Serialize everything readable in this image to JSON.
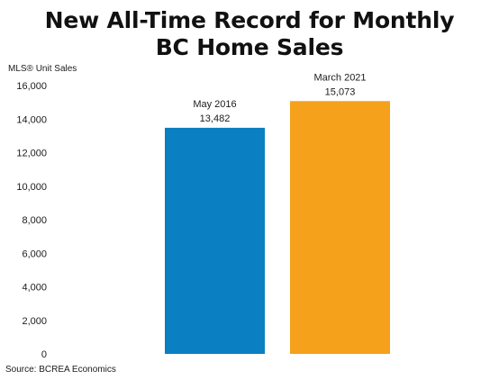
{
  "chart_data": {
    "type": "bar",
    "title": "New All-Time Record for Monthly BC Home Sales",
    "title_lines": [
      "New All-Time Record for Monthly",
      "BC Home Sales"
    ],
    "ylabel": "MLS® Unit Sales",
    "xlabel": "",
    "categories": [
      "May 2016",
      "March 2021"
    ],
    "values": [
      13482,
      15073
    ],
    "value_labels": [
      "13,482",
      "15,073"
    ],
    "bar_colors": [
      "#0a7fc1",
      "#f5a11c"
    ],
    "ylim": [
      0,
      16000
    ],
    "yticks": [
      0,
      2000,
      4000,
      6000,
      8000,
      10000,
      12000,
      14000,
      16000
    ],
    "ytick_labels": [
      "0",
      "2,000",
      "4,000",
      "6,000",
      "8,000",
      "10,000",
      "12,000",
      "14,000",
      "16,000"
    ],
    "grid": false,
    "legend": false
  },
  "source": "Source: BCREA Economics"
}
